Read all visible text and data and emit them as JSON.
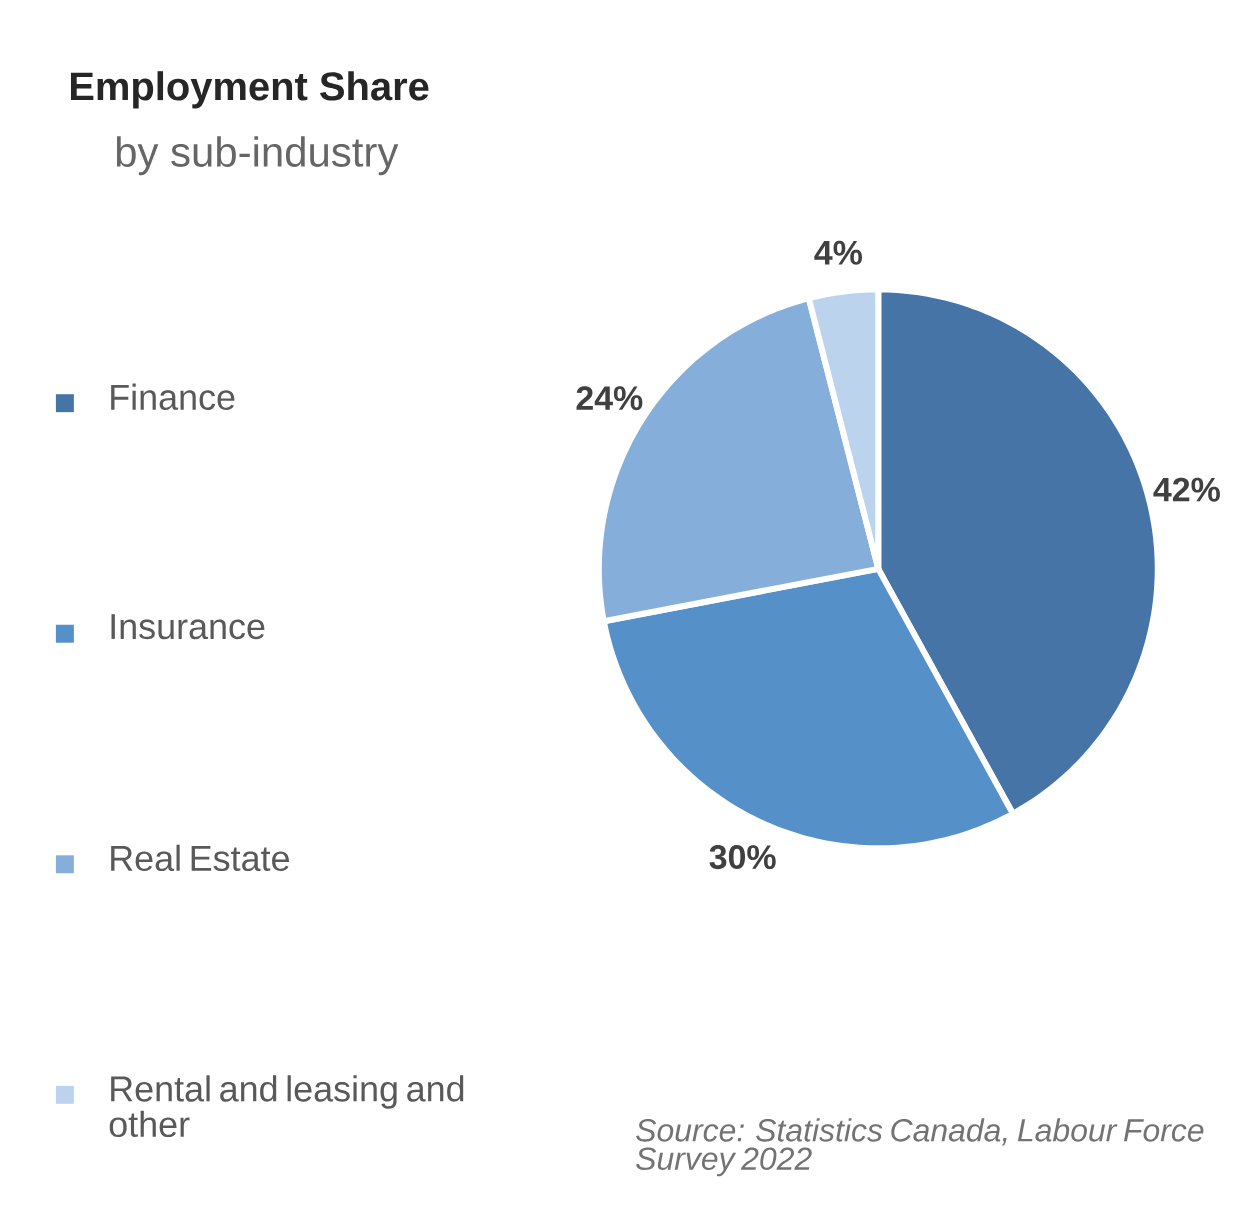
{
  "chart_data": {
    "type": "pie",
    "title": "Employment Share",
    "subtitle": "by sub-industry",
    "categories": [
      "Finance",
      "Insurance",
      "Real Estate",
      "Rental and leasing and other"
    ],
    "values": [
      42,
      30,
      24,
      4
    ],
    "colors": [
      "#4674a6",
      "#5590c9",
      "#86aedb",
      "#bcd3ee"
    ],
    "value_labels": [
      "42%",
      "30%",
      "24%",
      "4%"
    ],
    "legend": "left",
    "annotations": [
      "Source: Statistics Canada, Labour Force Survey 2022"
    ]
  }
}
